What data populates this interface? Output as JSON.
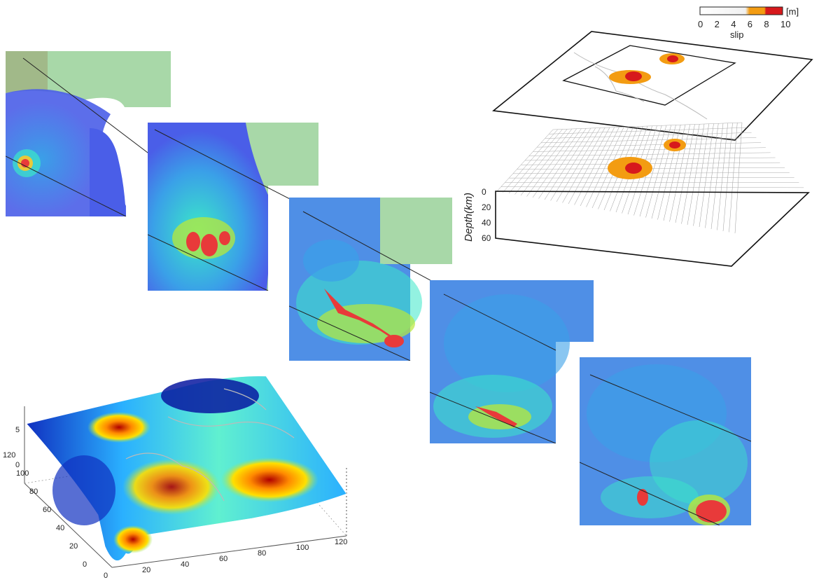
{
  "legend": {
    "unit": "[m]",
    "ticks": [
      "0",
      "2",
      "4",
      "6",
      "8",
      "10"
    ],
    "title": "slip",
    "colors": {
      "low": "#ffffff",
      "mid": "#f39c12",
      "high": "#d7191c"
    }
  },
  "slip_model": {
    "depth_label": "Depth(km)",
    "depth_ticks": [
      "0",
      "20",
      "40",
      "60"
    ]
  },
  "surface_plot": {
    "z_ticks": [
      "5",
      "0"
    ],
    "y_ticks": [
      "120",
      "100",
      "80",
      "60",
      "40",
      "20",
      "0"
    ],
    "x_ticks": [
      "0",
      "20",
      "40",
      "60",
      "80",
      "100",
      "120"
    ]
  },
  "snapshots": {
    "count": 5,
    "colormap": [
      "#3a48e8",
      "#3aa0e8",
      "#3ae8c8",
      "#b8e83a",
      "#e8c83a",
      "#e83a3a"
    ]
  }
}
